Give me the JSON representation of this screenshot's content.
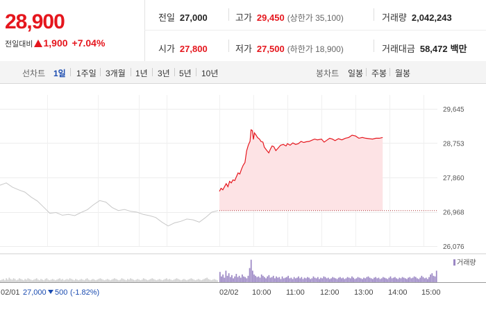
{
  "price": {
    "current": "28,900",
    "change_label": "전일대비",
    "change": "1,900",
    "change_pct": "+7.04%"
  },
  "stats": {
    "prev_close": {
      "label": "전일",
      "value": "27,000"
    },
    "high": {
      "label": "고가",
      "value": "29,450",
      "sub": "(상한가 35,100)"
    },
    "volume": {
      "label": "거래량",
      "value": "2,042,243"
    },
    "open": {
      "label": "시가",
      "value": "27,800"
    },
    "low": {
      "label": "저가",
      "value": "27,500",
      "sub": "(하한가 18,900)"
    },
    "amount": {
      "label": "거래대금",
      "value": "58,472",
      "unit": "백만"
    }
  },
  "line_tabs": {
    "label": "선차트",
    "items": [
      "1일",
      "1주일",
      "3개월",
      "1년",
      "3년",
      "5년",
      "10년"
    ],
    "selected": "1일"
  },
  "candle_tabs": {
    "label": "봉차트",
    "items": [
      "일봉",
      "주봉",
      "월봉"
    ]
  },
  "colors": {
    "up": "#e5161d",
    "down": "#1a4bb0",
    "fill": "#fde3e5",
    "prev_line": "#c8c8c8",
    "volume": "#9b87c4"
  },
  "chart_data": {
    "type": "line",
    "ylim": [
      26076,
      29645
    ],
    "yticks": [
      29645,
      28753,
      27860,
      26968,
      26076
    ],
    "ytick_labels": [
      "29,645",
      "28,753",
      "27,860",
      "26,968",
      "26,076"
    ],
    "reference_value": 27000,
    "time_labels": [
      "02/02",
      "10:00",
      "11:00",
      "12:00",
      "13:00",
      "14:00",
      "15:00"
    ],
    "left_label": "02/01",
    "left_value": "27,000",
    "left_change": "500",
    "left_change_pct": "(-1.82%)",
    "volume_legend": "거래량",
    "prev_day_series": [
      [
        0,
        27660
      ],
      [
        0.2,
        27720
      ],
      [
        0.4,
        27610
      ],
      [
        0.6,
        27540
      ],
      [
        0.8,
        27480
      ],
      [
        1.0,
        27350
      ],
      [
        1.2,
        27250
      ],
      [
        1.4,
        27090
      ],
      [
        1.6,
        26930
      ],
      [
        1.8,
        26950
      ],
      [
        2.0,
        26880
      ],
      [
        2.2,
        26900
      ],
      [
        2.4,
        26870
      ],
      [
        2.6,
        26950
      ],
      [
        2.8,
        27020
      ],
      [
        3.0,
        27150
      ],
      [
        3.2,
        27260
      ],
      [
        3.4,
        27220
      ],
      [
        3.6,
        27080
      ],
      [
        3.8,
        27000
      ],
      [
        4.0,
        27030
      ],
      [
        4.2,
        26980
      ],
      [
        4.4,
        26960
      ],
      [
        4.6,
        26900
      ],
      [
        4.8,
        26870
      ],
      [
        5.0,
        26820
      ],
      [
        5.2,
        26700
      ],
      [
        5.4,
        26600
      ],
      [
        5.6,
        26680
      ],
      [
        5.8,
        26720
      ],
      [
        6.0,
        26780
      ],
      [
        6.2,
        26760
      ],
      [
        6.4,
        26700
      ],
      [
        6.6,
        26820
      ],
      [
        6.8,
        26960
      ],
      [
        7.0,
        27000
      ]
    ],
    "today_series": [
      [
        0,
        27500
      ],
      [
        0.05,
        27580
      ],
      [
        0.1,
        27540
      ],
      [
        0.15,
        27620
      ],
      [
        0.2,
        27700
      ],
      [
        0.25,
        27620
      ],
      [
        0.3,
        27760
      ],
      [
        0.35,
        27720
      ],
      [
        0.4,
        27800
      ],
      [
        0.45,
        27780
      ],
      [
        0.5,
        27880
      ],
      [
        0.55,
        27980
      ],
      [
        0.6,
        27950
      ],
      [
        0.65,
        28080
      ],
      [
        0.7,
        28180
      ],
      [
        0.75,
        28250
      ],
      [
        0.8,
        28550
      ],
      [
        0.85,
        28700
      ],
      [
        0.9,
        28800
      ],
      [
        0.93,
        29100
      ],
      [
        0.97,
        29080
      ],
      [
        1.0,
        28850
      ],
      [
        1.03,
        29020
      ],
      [
        1.08,
        28960
      ],
      [
        1.12,
        28900
      ],
      [
        1.18,
        28860
      ],
      [
        1.22,
        28800
      ],
      [
        1.28,
        28780
      ],
      [
        1.32,
        28650
      ],
      [
        1.38,
        28580
      ],
      [
        1.45,
        28500
      ],
      [
        1.5,
        28600
      ],
      [
        1.55,
        28680
      ],
      [
        1.6,
        28660
      ],
      [
        1.66,
        28560
      ],
      [
        1.72,
        28620
      ],
      [
        1.8,
        28700
      ],
      [
        1.88,
        28720
      ],
      [
        1.96,
        28680
      ],
      [
        2.0,
        28740
      ],
      [
        2.08,
        28700
      ],
      [
        2.16,
        28760
      ],
      [
        2.24,
        28720
      ],
      [
        2.32,
        28740
      ],
      [
        2.4,
        28800
      ],
      [
        2.48,
        28770
      ],
      [
        2.56,
        28790
      ],
      [
        2.64,
        28800
      ],
      [
        2.72,
        28830
      ],
      [
        2.8,
        28860
      ],
      [
        2.88,
        28840
      ],
      [
        3.0,
        28860
      ],
      [
        3.08,
        28780
      ],
      [
        3.16,
        28830
      ],
      [
        3.24,
        28880
      ],
      [
        3.32,
        28860
      ],
      [
        3.4,
        28820
      ],
      [
        3.5,
        28870
      ],
      [
        3.6,
        28840
      ],
      [
        3.7,
        28880
      ],
      [
        3.8,
        28900
      ],
      [
        3.9,
        28960
      ],
      [
        4.0,
        28940
      ],
      [
        4.1,
        28880
      ],
      [
        4.2,
        28900
      ],
      [
        4.3,
        28880
      ],
      [
        4.4,
        28870
      ],
      [
        4.5,
        28860
      ],
      [
        4.6,
        28880
      ],
      [
        4.7,
        28880
      ],
      [
        4.8,
        28900
      ]
    ],
    "volume_prev": [
      3,
      4,
      5,
      3,
      6,
      4,
      7,
      5,
      4,
      6,
      5,
      3,
      4,
      6,
      5,
      4,
      3,
      5,
      4,
      6,
      5,
      4,
      3,
      4,
      5,
      6,
      4,
      3,
      5,
      4,
      3,
      5,
      6,
      4,
      3,
      4,
      5,
      4,
      3,
      4,
      5,
      6,
      4,
      5,
      3,
      4,
      5,
      4,
      6,
      5,
      4,
      3,
      5,
      4,
      3,
      4,
      5,
      4,
      3,
      5,
      6,
      4,
      3,
      4,
      5,
      4,
      3,
      4,
      5,
      6,
      5,
      4,
      3,
      4,
      5,
      4,
      3,
      4,
      5,
      6,
      5,
      4,
      3,
      4,
      6,
      5,
      4,
      3,
      5,
      4,
      6,
      5,
      4,
      3,
      4,
      5,
      4,
      3,
      4,
      6,
      5,
      4,
      3,
      4,
      5,
      6,
      5,
      4,
      3,
      4,
      5,
      4,
      3,
      4,
      5,
      6,
      4,
      5,
      4,
      3,
      4,
      5,
      6,
      5,
      4,
      3,
      4,
      5,
      4,
      3,
      4,
      5,
      6,
      5,
      4,
      3,
      4,
      5,
      4,
      3,
      4,
      5,
      6,
      7,
      5,
      4,
      3,
      4,
      5,
      4,
      3
    ],
    "volume_today": [
      16,
      9,
      12,
      7,
      18,
      10,
      14,
      8,
      11,
      6,
      9,
      13,
      8,
      10,
      7,
      12,
      9,
      8,
      6,
      10,
      22,
      35,
      18,
      12,
      10,
      8,
      9,
      7,
      12,
      10,
      8,
      6,
      9,
      11,
      7,
      8,
      10,
      6,
      9,
      7,
      8,
      5,
      9,
      6,
      7,
      8,
      10,
      6,
      7,
      5,
      8,
      6,
      7,
      9,
      6,
      8,
      5,
      7,
      6,
      8,
      7,
      5,
      6,
      9,
      7,
      6,
      8,
      5,
      7,
      6,
      9,
      8,
      6,
      7,
      5,
      6,
      8,
      7,
      6,
      5,
      7,
      8,
      6,
      7,
      5,
      6,
      8,
      7,
      6,
      9,
      7,
      5,
      6,
      8,
      7,
      6,
      5,
      7,
      6,
      8,
      9,
      7,
      6,
      5,
      7,
      8,
      6,
      7,
      5,
      6,
      8,
      7,
      6,
      5,
      7,
      9,
      6,
      7,
      8,
      6,
      5,
      7,
      6,
      8,
      7,
      6,
      5,
      7,
      8,
      6,
      7,
      9,
      8,
      6,
      5,
      7,
      10,
      8,
      6,
      7,
      5,
      8,
      12,
      14,
      10,
      9,
      18
    ]
  }
}
